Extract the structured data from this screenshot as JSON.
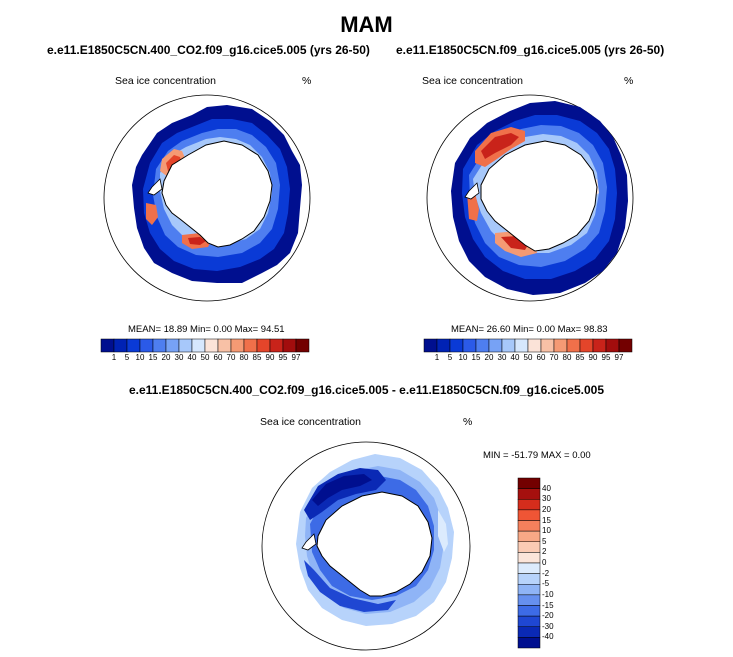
{
  "title": "MAM",
  "panels": [
    {
      "title": "e.e11.E1850C5CN.400_CO2.f09_g16.cice5.005 (yrs 26-50)",
      "variable": "Sea ice concentration",
      "units": "%",
      "stats": "MEAN=  18.89  Min=   0.00  Max=  94.51"
    },
    {
      "title": "e.e11.E1850C5CN.f09_g16.cice5.005 (yrs 26-50)",
      "variable": "Sea ice concentration",
      "units": "%",
      "stats": "MEAN=  26.60  Min=   0.00  Max=  98.83"
    }
  ],
  "difference": {
    "title": "e.e11.E1850C5CN.400_CO2.f09_g16.cice5.005 - e.e11.E1850C5CN.f09_g16.cice5.005",
    "variable": "Sea ice concentration",
    "units": "%",
    "stats": "MIN = -51.79 MAX =   0.00"
  },
  "colorbar_abs": {
    "labels": [
      "1",
      "5",
      "10",
      "15",
      "20",
      "30",
      "40",
      "50",
      "60",
      "70",
      "80",
      "85",
      "90",
      "95",
      "97"
    ],
    "colors": [
      "#000f8f",
      "#0022b4",
      "#0a3ad6",
      "#2b5ae8",
      "#4e7ef0",
      "#77a2f5",
      "#a7c8fa",
      "#d6e7fd",
      "#fbe3d8",
      "#f8c1a6",
      "#f59a74",
      "#f0704a",
      "#e4452a",
      "#c9231a",
      "#a20d0d",
      "#730000"
    ]
  },
  "colorbar_diff": {
    "labels": [
      "40",
      "30",
      "20",
      "15",
      "10",
      "5",
      "2",
      "0",
      "-2",
      "-5",
      "-10",
      "-15",
      "-20",
      "-30",
      "-40"
    ],
    "colors": [
      "#730000",
      "#a5100e",
      "#d52d1c",
      "#ef5535",
      "#f5805c",
      "#f8a886",
      "#fbcbb4",
      "#fbe5da",
      "#dcebfd",
      "#b7d3fb",
      "#8fb4f6",
      "#6690ef",
      "#3d6be6",
      "#1f47d2",
      "#0a29b5",
      "#000f8f"
    ]
  },
  "colors": {
    "ocean": "#ffffff",
    "land": "#ffffff",
    "coast": "#000000"
  }
}
